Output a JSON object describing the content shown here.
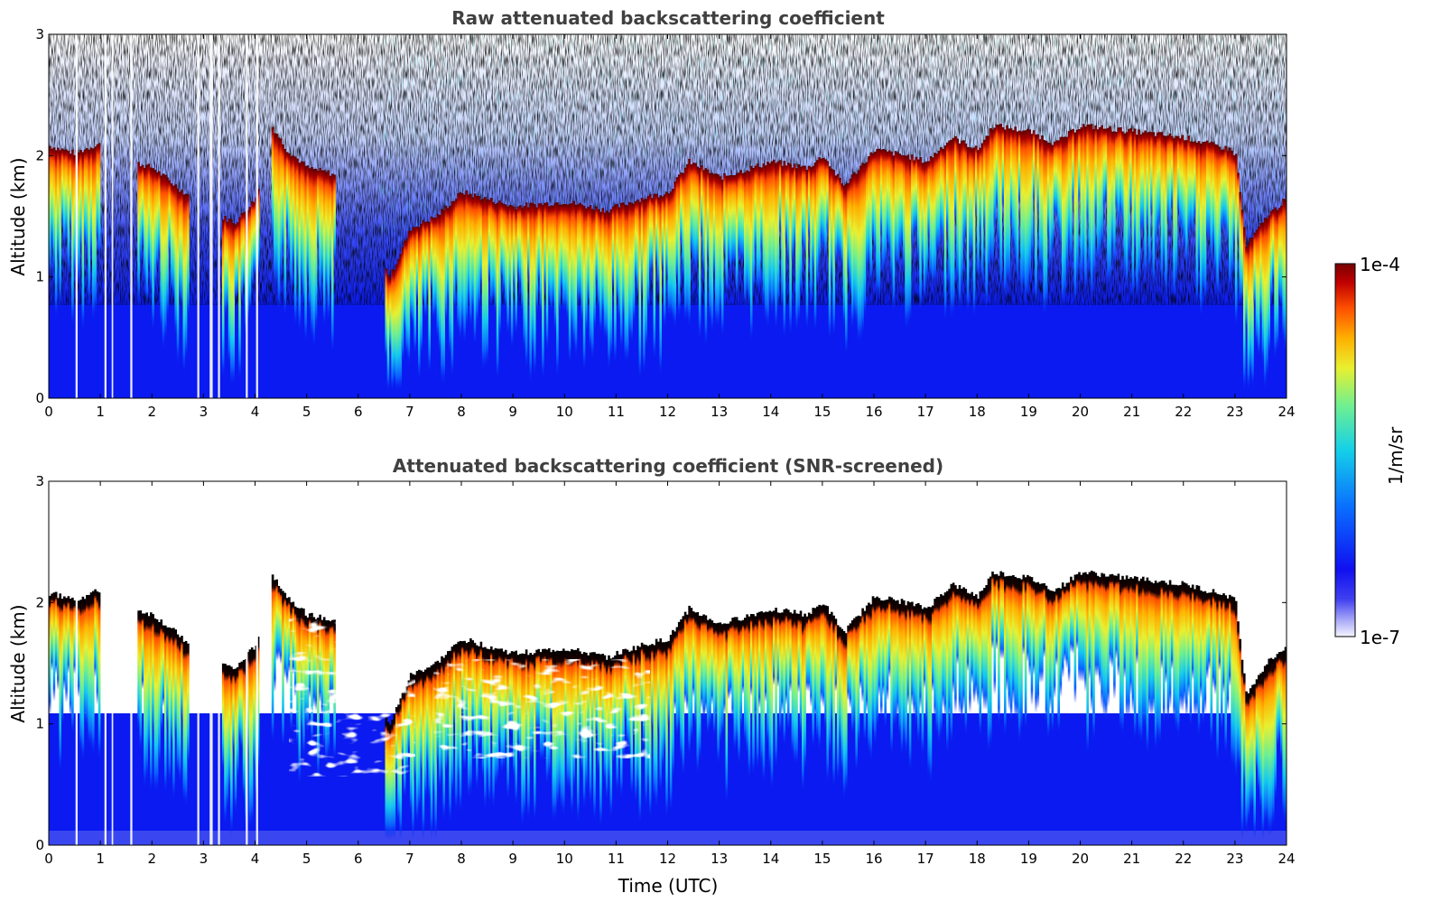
{
  "chart_data": [
    {
      "type": "heatmap",
      "title": "Raw attenuated backscattering coefficient",
      "xlabel": "",
      "ylabel": "Altitude (km)",
      "xlim": [
        0,
        24
      ],
      "ylim": [
        0,
        3
      ],
      "x_ticks": [
        "0",
        "1",
        "2",
        "3",
        "4",
        "5",
        "6",
        "7",
        "8",
        "9",
        "10",
        "11",
        "12",
        "13",
        "14",
        "15",
        "16",
        "17",
        "18",
        "19",
        "20",
        "21",
        "22",
        "23",
        "24"
      ],
      "y_ticks": [
        "0",
        "1",
        "2",
        "3"
      ],
      "background": "#0a1af0",
      "noise_color": "#2ad6e8",
      "layer_top_km": [
        [
          0,
          2.08
        ],
        [
          0.5,
          2.02
        ],
        [
          0.95,
          2.1
        ],
        [
          1.6,
          1.95
        ],
        [
          2.0,
          1.9
        ],
        [
          2.6,
          1.7
        ],
        [
          3.3,
          1.5
        ],
        [
          3.6,
          1.45
        ],
        [
          4.0,
          1.65
        ],
        [
          4.3,
          2.25
        ],
        [
          4.6,
          2.05
        ],
        [
          5.0,
          1.9
        ],
        [
          5.5,
          1.85
        ],
        [
          6.6,
          1.0
        ],
        [
          7.0,
          1.4
        ],
        [
          7.5,
          1.5
        ],
        [
          8.0,
          1.7
        ],
        [
          9.0,
          1.58
        ],
        [
          10.0,
          1.62
        ],
        [
          10.8,
          1.55
        ],
        [
          11.5,
          1.65
        ],
        [
          12.0,
          1.7
        ],
        [
          12.4,
          1.95
        ],
        [
          13.0,
          1.82
        ],
        [
          14.0,
          1.95
        ],
        [
          14.7,
          1.9
        ],
        [
          15.0,
          2.0
        ],
        [
          15.4,
          1.75
        ],
        [
          16.0,
          2.05
        ],
        [
          16.6,
          2.0
        ],
        [
          17.0,
          1.95
        ],
        [
          17.5,
          2.15
        ],
        [
          18.0,
          2.05
        ],
        [
          18.3,
          2.25
        ],
        [
          19.0,
          2.2
        ],
        [
          19.5,
          2.1
        ],
        [
          20.0,
          2.25
        ],
        [
          21.0,
          2.2
        ],
        [
          22.0,
          2.15
        ],
        [
          22.9,
          2.05
        ],
        [
          23.0,
          2.0
        ],
        [
          23.2,
          1.25
        ],
        [
          23.6,
          1.5
        ],
        [
          24.0,
          1.65
        ]
      ],
      "clear_gaps_h": [
        [
          0.52,
          0.56
        ],
        [
          1.08,
          1.12
        ],
        [
          1.22,
          1.25
        ],
        [
          1.58,
          1.62
        ],
        [
          2.88,
          2.92
        ],
        [
          3.12,
          3.18
        ],
        [
          3.28,
          3.32
        ],
        [
          3.82,
          3.86
        ],
        [
          4.02,
          4.06
        ]
      ]
    },
    {
      "type": "heatmap",
      "title": "Attenuated backscattering coefficient (SNR-screened)",
      "xlabel": "Time (UTC)",
      "ylabel": "Altitude (km)",
      "xlim": [
        0,
        24
      ],
      "ylim": [
        0,
        3
      ],
      "x_ticks": [
        "0",
        "1",
        "2",
        "3",
        "4",
        "5",
        "6",
        "7",
        "8",
        "9",
        "10",
        "11",
        "12",
        "13",
        "14",
        "15",
        "16",
        "17",
        "18",
        "19",
        "20",
        "21",
        "22",
        "23",
        "24"
      ],
      "y_ticks": [
        "0",
        "1",
        "2",
        "3"
      ],
      "screened_color": "#ffffff",
      "peak_color": "#000000"
    }
  ],
  "colorbar": {
    "max_label": "1e-4",
    "min_label": "1e-7",
    "unit_label": "1/m/sr",
    "colors": [
      "#e8e8ff",
      "#b0b0f8",
      "#7070f0",
      "#1010f0",
      "#0a40f8",
      "#0a80ff",
      "#14c8f0",
      "#40f0c0",
      "#a0f070",
      "#f0f030",
      "#ffb000",
      "#ff5000",
      "#e01000",
      "#a00000",
      "#700000"
    ]
  }
}
